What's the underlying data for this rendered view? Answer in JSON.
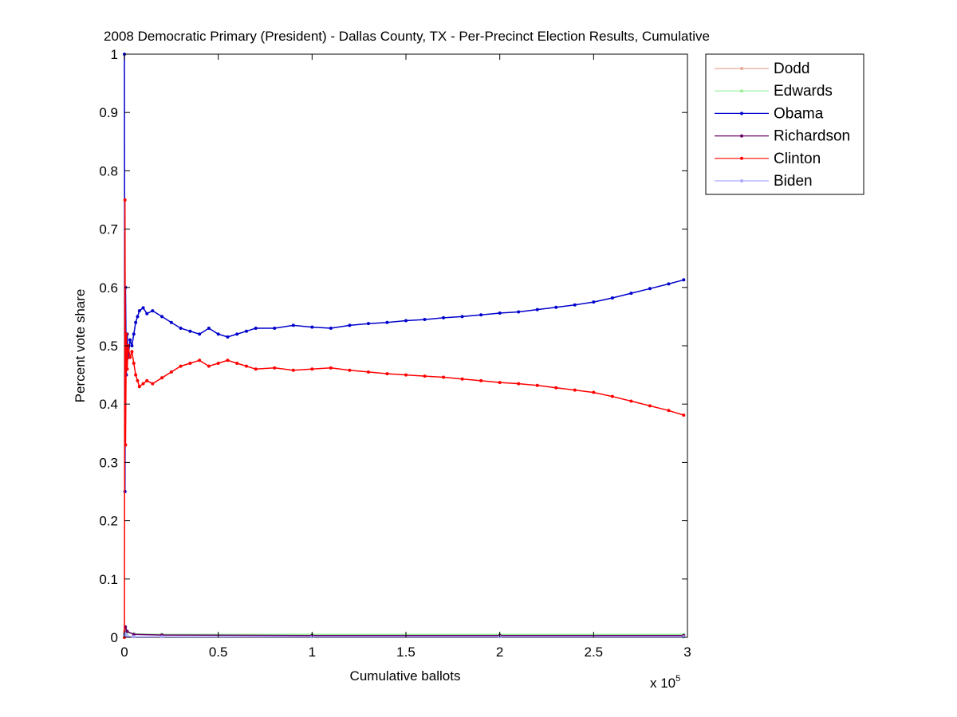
{
  "chart_data": {
    "type": "line",
    "title": "2008 Democratic Primary (President) - Dallas County, TX - Per-Precinct Election Results, Cumulative",
    "xlabel": "Cumulative ballots",
    "ylabel": "Percent vote share",
    "x_multiplier_label": "x 10",
    "x_multiplier_exponent": "5",
    "xlim": [
      0,
      300000
    ],
    "ylim": [
      0,
      1
    ],
    "x_ticks": [
      0,
      50000,
      100000,
      150000,
      200000,
      250000,
      300000
    ],
    "x_tick_labels": [
      "0",
      "0.5",
      "1",
      "1.5",
      "2",
      "2.5",
      "3"
    ],
    "y_ticks": [
      0,
      0.1,
      0.2,
      0.3,
      0.4,
      0.5,
      0.6,
      0.7,
      0.8,
      0.9,
      1
    ],
    "y_tick_labels": [
      "0",
      "0.1",
      "0.2",
      "0.3",
      "0.4",
      "0.5",
      "0.6",
      "0.7",
      "0.8",
      "0.9",
      "1"
    ],
    "grid": false,
    "legend_position": "top-right-outside",
    "series": [
      {
        "name": "Dodd",
        "color": "#e8a898",
        "x": [
          0,
          500,
          1500,
          5000,
          20000,
          100000,
          200000,
          298000
        ],
        "y": [
          0.01,
          0.004,
          0.002,
          0.001,
          0.001,
          0.001,
          0.001,
          0.001
        ]
      },
      {
        "name": "Edwards",
        "color": "#99ee99",
        "x": [
          0,
          500,
          1500,
          5000,
          20000,
          100000,
          200000,
          298000
        ],
        "y": [
          0.005,
          0.012,
          0.008,
          0.006,
          0.005,
          0.005,
          0.005,
          0.005
        ]
      },
      {
        "name": "Obama",
        "color": "#0000cc",
        "x": [
          0,
          300,
          600,
          1000,
          1500,
          2000,
          3000,
          4000,
          5000,
          6000,
          7000,
          8000,
          10000,
          12000,
          15000,
          20000,
          25000,
          30000,
          35000,
          40000,
          45000,
          50000,
          55000,
          60000,
          65000,
          70000,
          80000,
          90000,
          100000,
          110000,
          120000,
          130000,
          140000,
          150000,
          160000,
          170000,
          180000,
          190000,
          200000,
          210000,
          220000,
          230000,
          240000,
          250000,
          260000,
          270000,
          280000,
          290000,
          298000
        ],
        "y": [
          1.0,
          0.25,
          0.6,
          0.45,
          0.52,
          0.48,
          0.51,
          0.5,
          0.52,
          0.54,
          0.55,
          0.56,
          0.565,
          0.555,
          0.56,
          0.55,
          0.54,
          0.53,
          0.525,
          0.52,
          0.53,
          0.52,
          0.515,
          0.52,
          0.525,
          0.53,
          0.53,
          0.535,
          0.532,
          0.53,
          0.535,
          0.538,
          0.54,
          0.543,
          0.545,
          0.548,
          0.55,
          0.553,
          0.556,
          0.558,
          0.562,
          0.566,
          0.57,
          0.575,
          0.582,
          0.59,
          0.598,
          0.606,
          0.613
        ]
      },
      {
        "name": "Richardson",
        "color": "#660066",
        "x": [
          0,
          500,
          1500,
          5000,
          20000,
          100000,
          200000,
          298000
        ],
        "y": [
          0.005,
          0.018,
          0.01,
          0.005,
          0.004,
          0.003,
          0.003,
          0.003
        ]
      },
      {
        "name": "Clinton",
        "color": "#ff0000",
        "x": [
          0,
          300,
          600,
          1000,
          1500,
          2000,
          3000,
          4000,
          5000,
          6000,
          7000,
          8000,
          10000,
          12000,
          15000,
          20000,
          25000,
          30000,
          35000,
          40000,
          45000,
          50000,
          55000,
          60000,
          65000,
          70000,
          80000,
          90000,
          100000,
          110000,
          120000,
          130000,
          140000,
          150000,
          160000,
          170000,
          180000,
          190000,
          200000,
          210000,
          220000,
          230000,
          240000,
          250000,
          260000,
          270000,
          280000,
          290000,
          298000
        ],
        "y": [
          0.0,
          0.75,
          0.33,
          0.52,
          0.46,
          0.5,
          0.48,
          0.49,
          0.47,
          0.45,
          0.44,
          0.43,
          0.435,
          0.44,
          0.435,
          0.445,
          0.455,
          0.465,
          0.47,
          0.475,
          0.465,
          0.47,
          0.475,
          0.47,
          0.465,
          0.46,
          0.462,
          0.458,
          0.46,
          0.462,
          0.458,
          0.455,
          0.452,
          0.45,
          0.448,
          0.446,
          0.443,
          0.44,
          0.437,
          0.435,
          0.432,
          0.428,
          0.424,
          0.42,
          0.413,
          0.405,
          0.397,
          0.389,
          0.381
        ]
      },
      {
        "name": "Biden",
        "color": "#aaaaff",
        "x": [
          0,
          500,
          1500,
          5000,
          20000,
          100000,
          200000,
          298000
        ],
        "y": [
          0.004,
          0.006,
          0.002,
          0.001,
          0.001,
          0.001,
          0.001,
          0.001
        ]
      }
    ]
  }
}
